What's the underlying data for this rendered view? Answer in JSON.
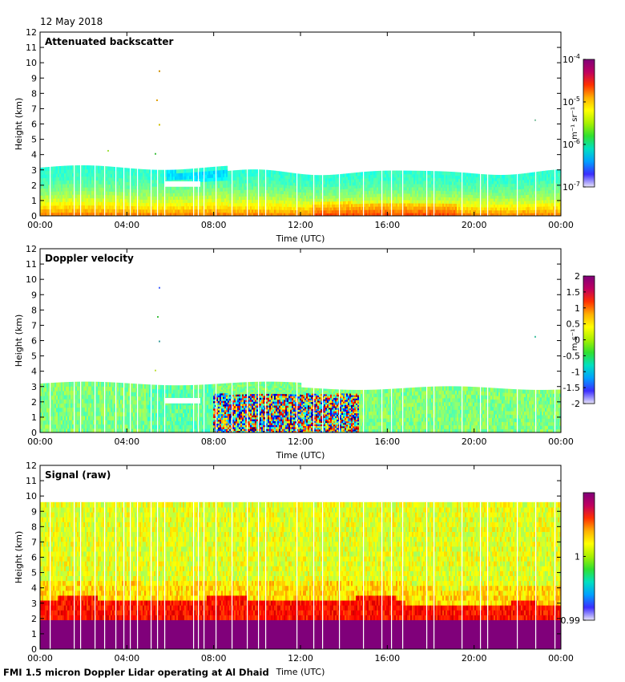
{
  "header": {
    "date": "12 May 2018"
  },
  "footer": {
    "caption": "FMI 1.5 micron Doppler Lidar operating at Al Dhaid"
  },
  "chart_data": [
    {
      "type": "heatmap",
      "title": "Attenuated backscatter",
      "xlabel": "Time (UTC)",
      "ylabel": "Height (km)",
      "x_ticks": [
        "00:00",
        "04:00",
        "08:00",
        "12:00",
        "16:00",
        "20:00",
        "00:00"
      ],
      "ylim": [
        0,
        12
      ],
      "y_ticks": [
        0,
        1,
        2,
        3,
        4,
        5,
        6,
        7,
        8,
        9,
        10,
        11,
        12
      ],
      "colorbar": {
        "scale": "log",
        "label": "m⁻¹ sr⁻¹",
        "range": [
          1e-07,
          0.0001
        ],
        "ticks": [
          {
            "base": "10",
            "exp": "-4",
            "value": 0.0001
          },
          {
            "base": "10",
            "exp": "-5",
            "value": 1e-05
          },
          {
            "base": "10",
            "exp": "-6",
            "value": 1e-06
          },
          {
            "base": "10",
            "exp": "-7",
            "value": 1e-07
          }
        ]
      },
      "description_data": {
        "layer_top_km_approx": 3.2,
        "signal_max_near_surface": true
      }
    },
    {
      "type": "heatmap",
      "title": "Doppler velocity",
      "xlabel": "Time (UTC)",
      "ylabel": "Height (km)",
      "x_ticks": [
        "00:00",
        "04:00",
        "08:00",
        "12:00",
        "16:00",
        "20:00",
        "00:00"
      ],
      "ylim": [
        0,
        12
      ],
      "y_ticks": [
        0,
        1,
        2,
        3,
        4,
        5,
        6,
        7,
        8,
        9,
        10,
        11,
        12
      ],
      "colorbar": {
        "scale": "linear",
        "label": "m s⁻¹",
        "range": [
          -2,
          2
        ],
        "ticks": [
          "2",
          "1.5",
          "1",
          "0.5",
          "0",
          "-0.5",
          "-1",
          "-1.5",
          "-2"
        ]
      },
      "description_data": {
        "convective_period_utc": [
          "08:00",
          "14:30"
        ],
        "layer_top_km_approx": 3.2
      }
    },
    {
      "type": "heatmap",
      "title": "Signal (raw)",
      "xlabel": "Time (UTC)",
      "ylabel": "Height (km)",
      "x_ticks": [
        "00:00",
        "04:00",
        "08:00",
        "12:00",
        "16:00",
        "20:00",
        "00:00"
      ],
      "ylim": [
        0,
        12
      ],
      "y_ticks": [
        0,
        1,
        2,
        3,
        4,
        5,
        6,
        7,
        8,
        9,
        10,
        11,
        12
      ],
      "colorbar": {
        "scale": "linear",
        "label": "",
        "range": [
          0.99,
          1.01
        ],
        "ticks": [
          "1",
          "0.99"
        ]
      },
      "description_data": {
        "data_top_km": 9.6,
        "saturated_below_km": 2.2
      }
    }
  ]
}
